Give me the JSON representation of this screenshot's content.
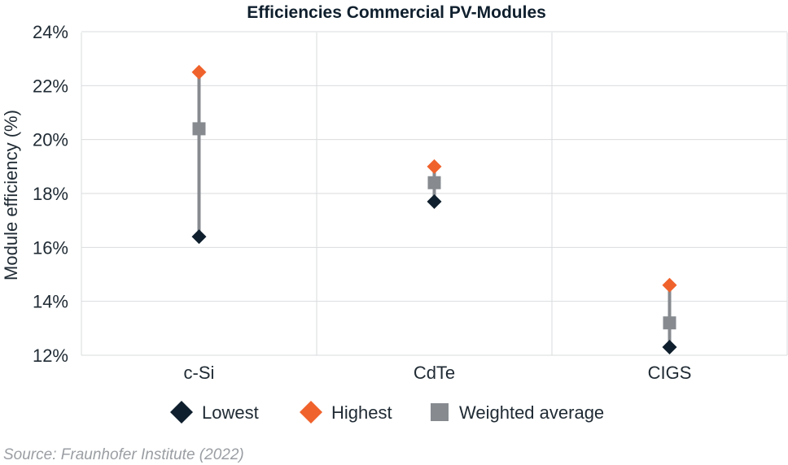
{
  "chart_data": {
    "type": "scatter",
    "title": "Efficiencies Commercial PV-Modules",
    "ylabel": "Module efficiency (%)",
    "xlabel": "",
    "categories": [
      "c-Si",
      "CdTe",
      "CIGS"
    ],
    "ylim": [
      12,
      24
    ],
    "yticks": [
      "12%",
      "14%",
      "16%",
      "18%",
      "20%",
      "22%",
      "24%"
    ],
    "yticks_values": [
      12,
      14,
      16,
      18,
      20,
      22,
      24
    ],
    "grid": true,
    "legend_position": "bottom",
    "series": [
      {
        "name": "Lowest",
        "marker": "diamond",
        "color": "#0f1f2d",
        "values": [
          16.4,
          17.7,
          12.3
        ]
      },
      {
        "name": "Highest",
        "marker": "diamond",
        "color": "#f0622c",
        "values": [
          22.5,
          19.0,
          14.6
        ]
      },
      {
        "name": "Weighted average",
        "marker": "square",
        "color": "#878b90",
        "values": [
          20.4,
          18.4,
          13.2
        ]
      }
    ],
    "range_line_color": "#878b90",
    "source": "Source: Fraunhofer Institute (2022)"
  }
}
